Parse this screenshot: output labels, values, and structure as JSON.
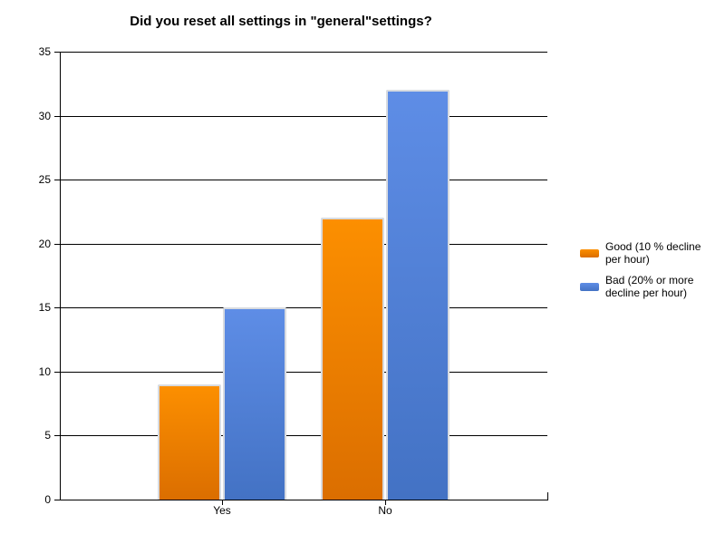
{
  "title": "Did you reset all settings in \"general\"settings?",
  "chart_data": {
    "type": "bar",
    "title": "Did you reset all settings in \"general\"settings?",
    "categories": [
      "Yes",
      "No"
    ],
    "series": [
      {
        "name": "Good (10 % decline per hour)",
        "values": [
          9,
          22
        ],
        "color": "#ee8100",
        "color_top": "#fc8f00",
        "color_bottom": "#db6e00"
      },
      {
        "name": "Bad (20% or more decline per hour)",
        "values": [
          15,
          32
        ],
        "color": "#4d7cd6",
        "color_top": "#5e8de6",
        "color_bottom": "#4372c4"
      }
    ],
    "xlabel": "",
    "ylabel": "",
    "ylim": [
      0,
      35
    ],
    "yticks": [
      0,
      5,
      10,
      15,
      20,
      25,
      30,
      35
    ],
    "grid": true,
    "gridline_color": "#000000",
    "bar_border_color": "#d8dbe0",
    "legend_position": "right"
  }
}
